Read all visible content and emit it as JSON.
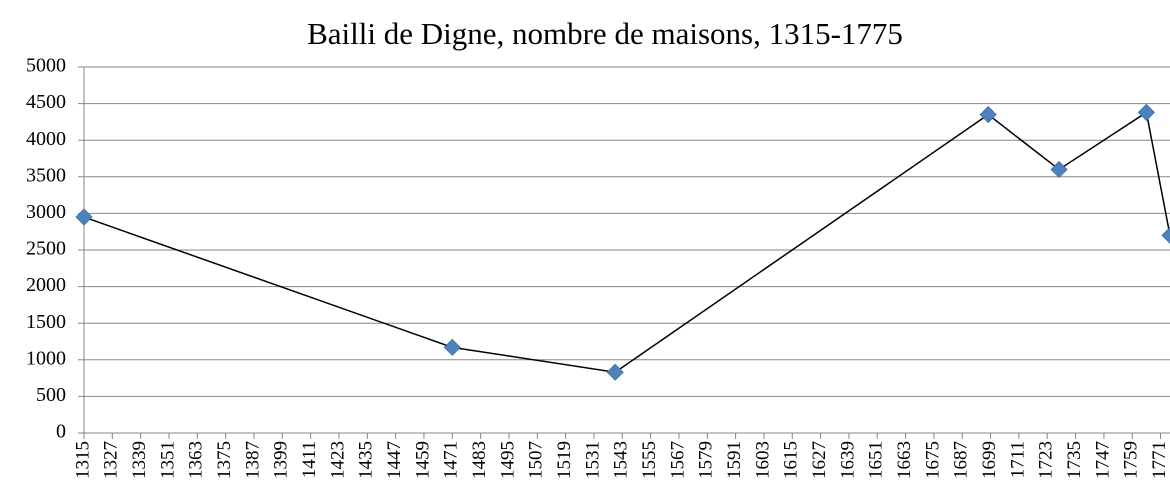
{
  "chart_data": {
    "type": "line",
    "title": "Bailli de Digne, nombre de maisons, 1315-1775",
    "x": [
      1315,
      1471,
      1540,
      1698,
      1728,
      1765,
      1775
    ],
    "values": [
      2950,
      1170,
      830,
      4350,
      3600,
      4380,
      2700
    ],
    "line_color": "#000000",
    "marker_color": "#4f81bd",
    "xlim": [
      1315,
      1775
    ],
    "xticks": [
      1315,
      1327,
      1339,
      1351,
      1363,
      1375,
      1387,
      1399,
      1411,
      1423,
      1435,
      1447,
      1459,
      1471,
      1483,
      1495,
      1507,
      1519,
      1531,
      1543,
      1555,
      1567,
      1579,
      1591,
      1603,
      1615,
      1627,
      1639,
      1651,
      1663,
      1675,
      1687,
      1699,
      1711,
      1723,
      1735,
      1747,
      1759,
      1771
    ],
    "ylim": [
      0,
      5000
    ],
    "yticks": [
      0,
      500,
      1000,
      1500,
      2000,
      2500,
      3000,
      3500,
      4000,
      4500,
      5000
    ],
    "grid": true
  }
}
